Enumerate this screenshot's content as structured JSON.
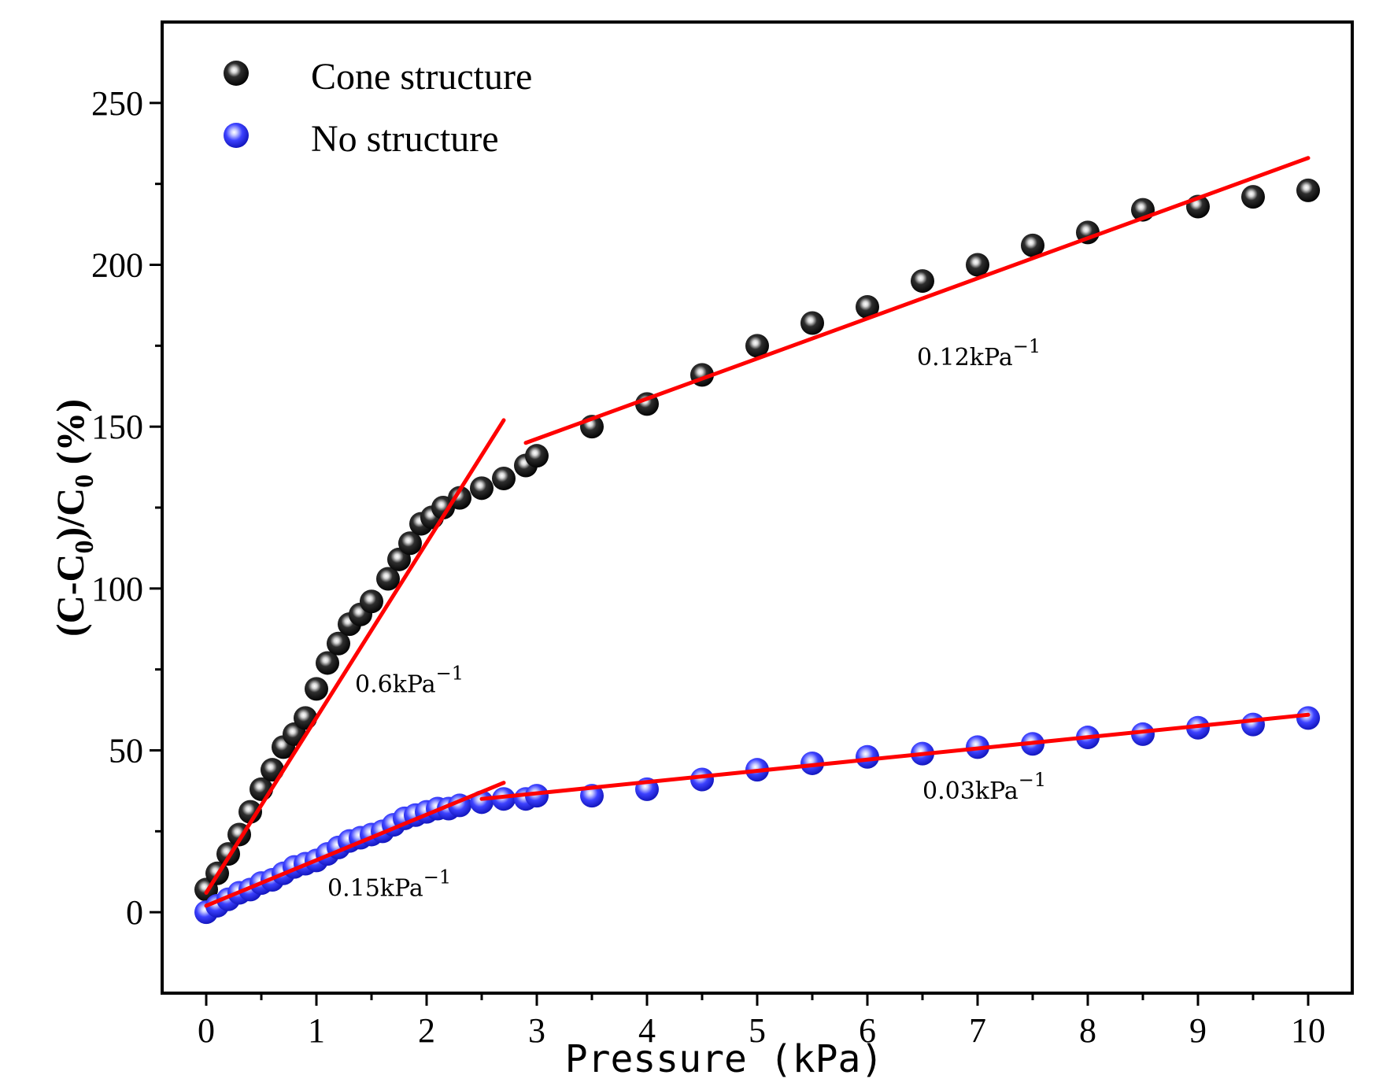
{
  "chart_data": {
    "type": "scatter",
    "title": "",
    "xlabel": "Pressure (kPa)",
    "ylabel": {
      "prefix": "(C-C",
      "sub": "0",
      "mid": ")/C",
      "sub2": "0",
      "suffix": " (%)"
    },
    "xlim": [
      -0.4,
      10.4
    ],
    "ylim": [
      -25,
      275
    ],
    "xticks": [
      0,
      1,
      2,
      3,
      4,
      5,
      6,
      7,
      8,
      9,
      10
    ],
    "yticks": [
      0,
      50,
      100,
      150,
      200,
      250
    ],
    "legend_position": "top-left",
    "series": [
      {
        "name": "Cone structure",
        "color": "#1a1a1a",
        "points": [
          [
            0,
            7
          ],
          [
            0.1,
            12
          ],
          [
            0.2,
            18
          ],
          [
            0.3,
            24
          ],
          [
            0.4,
            31
          ],
          [
            0.5,
            38
          ],
          [
            0.6,
            44
          ],
          [
            0.7,
            51
          ],
          [
            0.8,
            55
          ],
          [
            0.9,
            60
          ],
          [
            1.0,
            69
          ],
          [
            1.1,
            77
          ],
          [
            1.2,
            83
          ],
          [
            1.3,
            89
          ],
          [
            1.4,
            92
          ],
          [
            1.5,
            96
          ],
          [
            1.65,
            103
          ],
          [
            1.75,
            109
          ],
          [
            1.85,
            114
          ],
          [
            1.95,
            120
          ],
          [
            2.05,
            122
          ],
          [
            2.15,
            125
          ],
          [
            2.3,
            128
          ],
          [
            2.5,
            131
          ],
          [
            2.7,
            134
          ],
          [
            2.9,
            138
          ],
          [
            3.0,
            141
          ],
          [
            3.5,
            150
          ],
          [
            4.0,
            157
          ],
          [
            4.5,
            166
          ],
          [
            5.0,
            175
          ],
          [
            5.5,
            182
          ],
          [
            6.0,
            187
          ],
          [
            6.5,
            195
          ],
          [
            7.0,
            200
          ],
          [
            7.5,
            206
          ],
          [
            8.0,
            210
          ],
          [
            8.5,
            217
          ],
          [
            9.0,
            218
          ],
          [
            9.5,
            221
          ],
          [
            10.0,
            223
          ]
        ]
      },
      {
        "name": "No structure",
        "color": "#1f22ff",
        "points": [
          [
            0,
            0
          ],
          [
            0.1,
            2
          ],
          [
            0.2,
            4
          ],
          [
            0.3,
            6
          ],
          [
            0.4,
            7
          ],
          [
            0.5,
            9
          ],
          [
            0.6,
            10
          ],
          [
            0.7,
            12
          ],
          [
            0.8,
            14
          ],
          [
            0.9,
            15
          ],
          [
            1.0,
            16
          ],
          [
            1.1,
            18
          ],
          [
            1.2,
            20
          ],
          [
            1.3,
            22
          ],
          [
            1.4,
            23
          ],
          [
            1.5,
            24
          ],
          [
            1.6,
            25
          ],
          [
            1.7,
            27
          ],
          [
            1.8,
            29
          ],
          [
            1.9,
            30
          ],
          [
            2.0,
            31
          ],
          [
            2.1,
            32
          ],
          [
            2.2,
            32
          ],
          [
            2.3,
            33
          ],
          [
            2.5,
            34
          ],
          [
            2.7,
            35
          ],
          [
            2.9,
            35
          ],
          [
            3.0,
            36
          ],
          [
            3.5,
            36
          ],
          [
            4.0,
            38
          ],
          [
            4.5,
            41
          ],
          [
            5.0,
            44
          ],
          [
            5.5,
            46
          ],
          [
            6.0,
            48
          ],
          [
            6.5,
            49
          ],
          [
            7.0,
            51
          ],
          [
            7.5,
            52
          ],
          [
            8.0,
            54
          ],
          [
            8.5,
            55
          ],
          [
            9.0,
            57
          ],
          [
            9.5,
            58
          ],
          [
            10.0,
            60
          ]
        ]
      }
    ],
    "fit_lines": [
      {
        "from": [
          0,
          6
        ],
        "to": [
          2.7,
          152
        ],
        "color": "#ff0000"
      },
      {
        "from": [
          2.9,
          145
        ],
        "to": [
          10.0,
          233
        ],
        "color": "#ff0000"
      },
      {
        "from": [
          0,
          2
        ],
        "to": [
          2.7,
          40
        ],
        "color": "#ff0000"
      },
      {
        "from": [
          2.5,
          35
        ],
        "to": [
          10.0,
          61
        ],
        "color": "#ff0000"
      }
    ],
    "annotations": [
      {
        "base": "0.6kPa",
        "sup": "−1",
        "x": 1.35,
        "y": 68
      },
      {
        "base": "0.12kPa",
        "sup": "−1",
        "x": 6.45,
        "y": 169
      },
      {
        "base": "0.15kPa",
        "sup": "−1",
        "x": 1.1,
        "y": 5
      },
      {
        "base": "0.03kPa",
        "sup": "−1",
        "x": 6.5,
        "y": 35
      }
    ]
  }
}
